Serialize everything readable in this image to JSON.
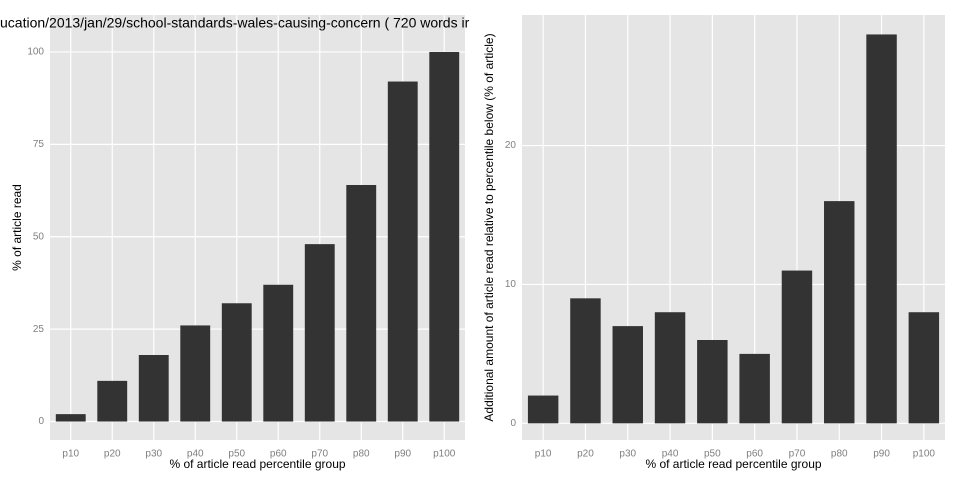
{
  "chart_data": [
    {
      "type": "bar",
      "title": "ucation/2013/jan/29/school-standards-wales-causing-concern ( 720 words ir",
      "x_label": "% of article read percentile group",
      "y_label": "% of article read",
      "categories": [
        "p10",
        "p20",
        "p30",
        "p40",
        "p50",
        "p60",
        "p70",
        "p80",
        "p90",
        "p100"
      ],
      "values": [
        2,
        11,
        18,
        26,
        32,
        37,
        48,
        64,
        92,
        100
      ],
      "color": "#333333",
      "ylim": [
        -5,
        110
      ],
      "yticks": [
        0,
        25,
        50,
        75,
        100
      ],
      "grid": true
    },
    {
      "type": "bar",
      "x_label": "% of article read percentile group",
      "y_label": "Additional amount of article read relative to percentile below (% of article)",
      "categories": [
        "p10",
        "p20",
        "p30",
        "p40",
        "p50",
        "p60",
        "p70",
        "p80",
        "p90",
        "p100"
      ],
      "values": [
        2,
        9,
        7,
        8,
        6,
        5,
        11,
        16,
        28,
        8
      ],
      "color": "#333333",
      "ylim": [
        -1.2,
        29.4
      ],
      "yticks": [
        0,
        10,
        20
      ],
      "grid": true
    }
  ]
}
